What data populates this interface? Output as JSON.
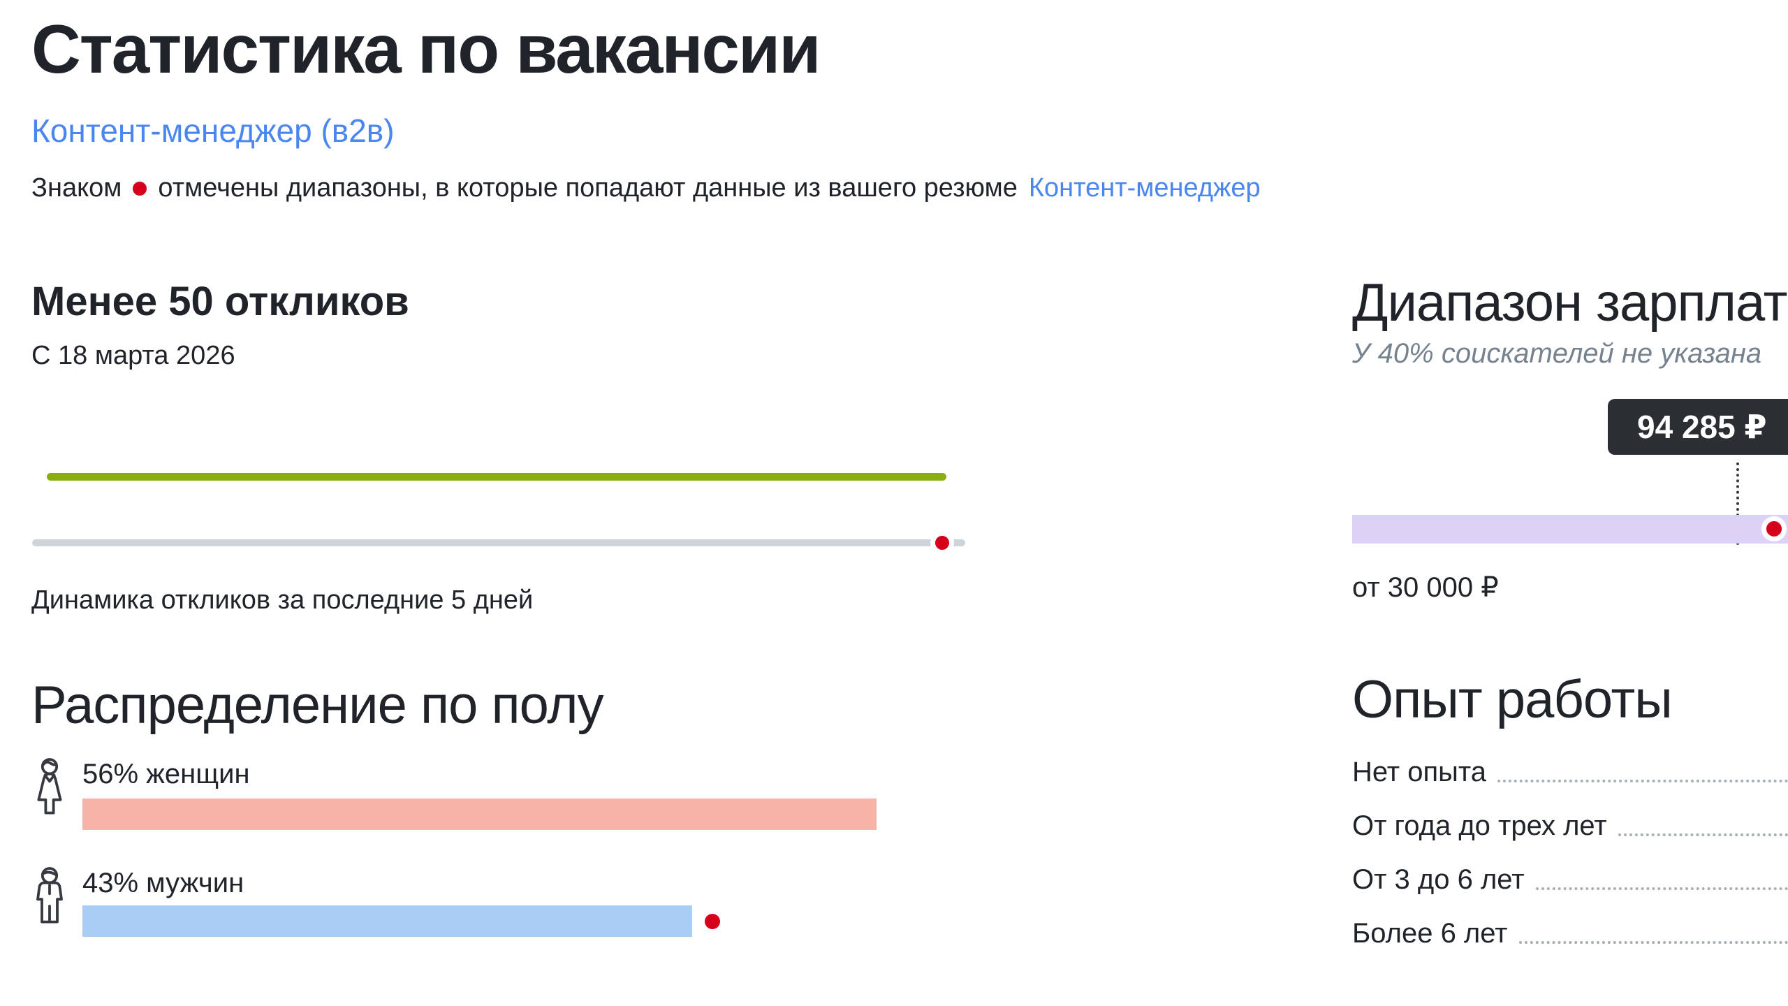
{
  "header": {
    "title": "Статистика по вакансии",
    "vacancy_link": "Контент-менеджер (в2в)",
    "legend_prefix": "Знаком",
    "legend_text": "отмечены диапазоны, в которые попадают данные из вашего резюме",
    "legend_resume_link": "Контент-менеджер",
    "marker_color": "#d6001c"
  },
  "responses": {
    "heading": "Менее 50 откликов",
    "since": "С 18 марта 2026",
    "caption": "Динамика откликов за последние 5 дней",
    "line_color": "#8aae10",
    "baseline_color": "#ccd3da"
  },
  "gender": {
    "heading": "Распределение по полу",
    "items": [
      {
        "label": "56% женщин",
        "percent": 56,
        "color": "#f8b3a9",
        "icon": "female-icon",
        "resume_match": false
      },
      {
        "label": "43% мужчин",
        "percent": 43,
        "color": "#a9cdf5",
        "icon": "male-icon",
        "resume_match": true
      }
    ]
  },
  "salary": {
    "heading": "Диапазон зарплат",
    "note": "У 40% соискателей не указана",
    "tooltip_value": "94 285 ₽",
    "range_start_label": "от 30 000 ₽",
    "bar_color": "#dcd2f5",
    "resume_match": true
  },
  "experience": {
    "heading": "Опыт работы",
    "rows": [
      {
        "label": "Нет опыта"
      },
      {
        "label": "От года до трех лет"
      },
      {
        "label": "От 3 до 6 лет"
      },
      {
        "label": "Более 6 лет"
      }
    ],
    "values_visible": false
  },
  "chart_data": [
    {
      "id": "responses-dynamics",
      "type": "line",
      "title": "Менее 50 откликов",
      "subtitle": "С 18 марта 2026",
      "caption": "Динамика откликов за последние 5 дней",
      "x_span": "последние 5 дней",
      "series": [
        {
          "name": "отклики",
          "shape": "flat-constant",
          "color": "#8aae10"
        }
      ],
      "baseline": {
        "color": "#ccd3da",
        "current_day_marker_color": "#d6001c",
        "marker_position": "end"
      },
      "grid": false,
      "legend": false
    },
    {
      "id": "gender-distribution",
      "type": "bar",
      "title": "Распределение по полу",
      "categories": [
        "женщин",
        "мужчин"
      ],
      "values": [
        56,
        43
      ],
      "unit": "%",
      "bar_colors": [
        "#f8b3a9",
        "#a9cdf5"
      ],
      "resume_match_marker_on": "мужчин",
      "xlim": [
        0,
        100
      ]
    },
    {
      "id": "salary-range",
      "type": "area",
      "title": "Диапазон зарплат",
      "note": "У 40% соискателей не указана",
      "range_start_label": "от 30 000 ₽",
      "highlighted_value": "94 285 ₽",
      "bar_color": "#dcd2f5",
      "resume_match_marker": true
    },
    {
      "id": "work-experience",
      "type": "table",
      "title": "Опыт работы",
      "categories": [
        "Нет опыта",
        "От года до трех лет",
        "От 3 до 6 лет",
        "Более 6 лет"
      ],
      "values": null
    }
  ]
}
